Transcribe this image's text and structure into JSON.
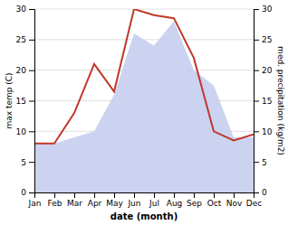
{
  "chart_data": {
    "type": "line",
    "x_label": "date (month)",
    "y_label": "max temp (C)",
    "y2_label": "med. precipitation (kg/m2)",
    "categories": [
      "Jan",
      "Feb",
      "Mar",
      "Apr",
      "May",
      "Jun",
      "Jul",
      "Aug",
      "Sep",
      "Oct",
      "Nov",
      "Dec"
    ],
    "series": [
      {
        "type": "area",
        "axis": "y2",
        "color": "#c5cef0",
        "values": [
          8,
          8,
          9,
          10,
          16,
          26,
          24,
          28,
          20,
          17.5,
          9,
          9
        ]
      },
      {
        "type": "line",
        "axis": "y",
        "color": "#c0392b",
        "values": [
          8,
          8,
          13,
          21,
          16.5,
          30,
          29,
          28.5,
          22,
          10,
          8.5,
          9.5
        ]
      }
    ],
    "ylim": [
      0,
      30
    ],
    "yticks": [
      0,
      5,
      10,
      15,
      20,
      25,
      30
    ],
    "y2lim": [
      0,
      30
    ],
    "y2ticks": [
      0,
      5,
      10,
      15,
      20,
      25,
      30
    ],
    "grid": true
  }
}
